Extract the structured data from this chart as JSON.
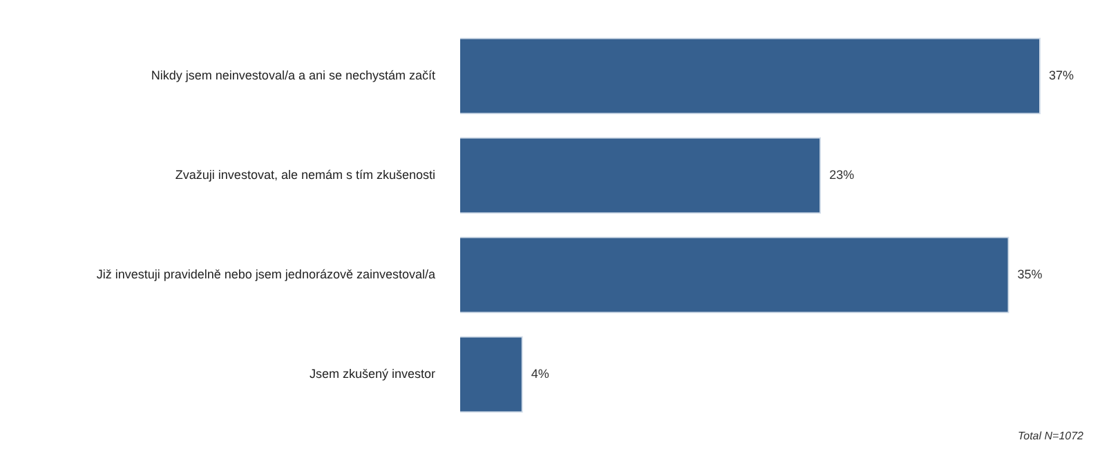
{
  "chart_data": {
    "type": "bar",
    "orientation": "horizontal",
    "categories": [
      "Nikdy jsem neinvestoval/a a ani se nechystám začít",
      "Zvažuji investovat, ale nemám s tím zkušenosti",
      "Již investuji pravidelně nebo jsem jednorázově zainvestoval/a",
      "Jsem zkušený investor"
    ],
    "values": [
      37,
      23,
      35,
      4
    ],
    "value_labels": [
      "37%",
      "23%",
      "35%",
      "4%"
    ],
    "color": "#36608f",
    "legend": false,
    "tick_labels": "y",
    "annotations": [
      "Total N=1072"
    ]
  }
}
